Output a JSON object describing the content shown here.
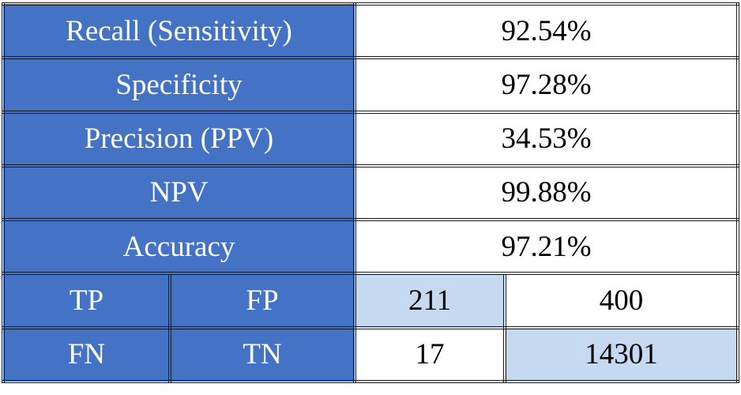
{
  "table": {
    "rows": [
      [
        "Recall (Sensitivity)",
        "92.54%"
      ],
      [
        "Specificity",
        "97.28%"
      ],
      [
        "Precision (PPV)",
        "34.53%"
      ],
      [
        "NPV",
        "99.88%"
      ],
      [
        "Accuracy",
        "97.21%"
      ],
      [
        "TP",
        "FP",
        "211",
        "400"
      ],
      [
        "FN",
        "TN",
        "17",
        "14301"
      ]
    ]
  }
}
